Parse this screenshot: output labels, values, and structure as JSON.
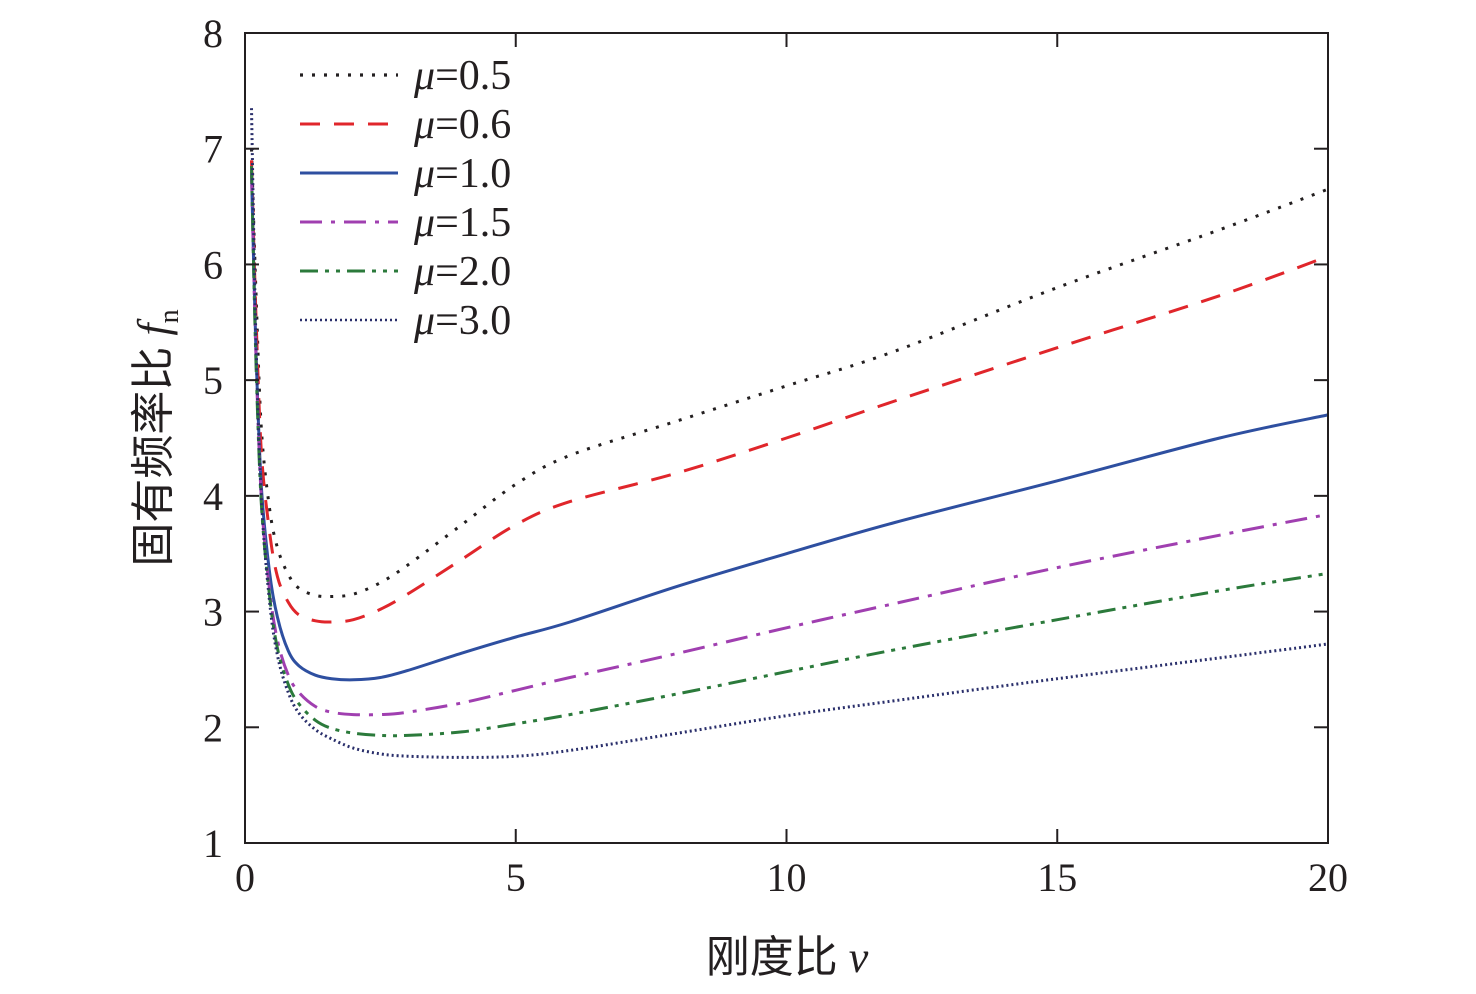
{
  "chart_data": {
    "type": "line",
    "title": "",
    "xlabel": "刚度比 v",
    "ylabel": "固有频率比 f_n",
    "xlabel_parts": {
      "text": "刚度比 ",
      "symbol": "v"
    },
    "ylabel_parts": {
      "text": "固有频率比 ",
      "symbol": "f",
      "subscript": "n"
    },
    "xlim": [
      0,
      20
    ],
    "ylim": [
      1,
      8
    ],
    "xticks": [
      0,
      5,
      10,
      15,
      20
    ],
    "yticks": [
      1,
      2,
      3,
      4,
      5,
      6,
      7,
      8
    ],
    "grid": false,
    "legend_position": "top-left",
    "series": [
      {
        "name": "μ=0.5",
        "mu": "0.5",
        "color": "#231f20",
        "dash": "3 9",
        "width": 3.2,
        "x": [
          0.12,
          0.2,
          0.3,
          0.45,
          0.6,
          0.8,
          1.0,
          1.3,
          1.6,
          2.0,
          2.5,
          3.0,
          4.0,
          5.0,
          6.0,
          8.0,
          10.0,
          12.0,
          15.0,
          18.0,
          20.0
        ],
        "y": [
          7.0,
          5.8,
          4.6,
          3.9,
          3.55,
          3.32,
          3.2,
          3.14,
          3.13,
          3.15,
          3.25,
          3.4,
          3.75,
          4.1,
          4.35,
          4.65,
          4.95,
          5.25,
          5.8,
          6.3,
          6.65
        ]
      },
      {
        "name": "μ=0.6",
        "mu": "0.6",
        "color": "#e0262b",
        "dash": "20 14",
        "width": 3,
        "x": [
          0.12,
          0.2,
          0.3,
          0.45,
          0.6,
          0.8,
          1.0,
          1.3,
          1.6,
          2.0,
          2.5,
          3.0,
          4.0,
          5.0,
          6.0,
          8.0,
          10.0,
          12.0,
          15.0,
          18.0,
          20.0
        ],
        "y": [
          6.9,
          5.6,
          4.4,
          3.7,
          3.3,
          3.08,
          2.97,
          2.92,
          2.91,
          2.93,
          3.02,
          3.15,
          3.45,
          3.75,
          3.95,
          4.2,
          4.5,
          4.82,
          5.28,
          5.73,
          6.07
        ]
      },
      {
        "name": "μ=1.0",
        "mu": "1.0",
        "color": "#2e4fa0",
        "dash": "",
        "width": 3,
        "x": [
          0.12,
          0.2,
          0.3,
          0.45,
          0.6,
          0.8,
          1.0,
          1.3,
          1.6,
          2.0,
          2.5,
          3.0,
          4.0,
          5.0,
          6.0,
          8.0,
          10.0,
          12.0,
          15.0,
          18.0,
          20.0
        ],
        "y": [
          6.8,
          5.3,
          4.1,
          3.35,
          2.95,
          2.66,
          2.53,
          2.45,
          2.42,
          2.41,
          2.43,
          2.49,
          2.64,
          2.78,
          2.91,
          3.22,
          3.5,
          3.77,
          4.13,
          4.5,
          4.7
        ]
      },
      {
        "name": "μ=1.5",
        "mu": "1.5",
        "color": "#a03fb0",
        "dash": "22 9 4 9",
        "width": 3,
        "x": [
          0.12,
          0.2,
          0.3,
          0.45,
          0.6,
          0.8,
          1.0,
          1.3,
          1.6,
          2.0,
          2.5,
          3.0,
          4.0,
          5.0,
          6.0,
          8.0,
          10.0,
          12.0,
          15.0,
          18.0,
          20.0
        ],
        "y": [
          6.8,
          5.25,
          4.0,
          3.2,
          2.75,
          2.45,
          2.3,
          2.18,
          2.13,
          2.11,
          2.11,
          2.13,
          2.21,
          2.32,
          2.43,
          2.64,
          2.86,
          3.07,
          3.38,
          3.66,
          3.84
        ]
      },
      {
        "name": "μ=2.0",
        "mu": "2.0",
        "color": "#2b7a3b",
        "dash": "18 7 4 7 4 7",
        "width": 3,
        "x": [
          0.12,
          0.2,
          0.3,
          0.45,
          0.6,
          0.8,
          1.0,
          1.3,
          1.6,
          2.0,
          2.5,
          3.0,
          4.0,
          5.0,
          6.0,
          8.0,
          10.0,
          12.0,
          15.0,
          18.0,
          20.0
        ],
        "y": [
          6.85,
          5.2,
          3.95,
          3.15,
          2.68,
          2.37,
          2.2,
          2.06,
          1.99,
          1.95,
          1.93,
          1.93,
          1.96,
          2.03,
          2.11,
          2.29,
          2.48,
          2.67,
          2.93,
          3.18,
          3.33
        ]
      },
      {
        "name": "μ=3.0",
        "mu": "3.0",
        "color": "#2a2f6b",
        "dash": "2 3",
        "width": 2.6,
        "x": [
          0.12,
          0.2,
          0.3,
          0.45,
          0.6,
          0.8,
          1.0,
          1.3,
          1.6,
          2.0,
          2.5,
          3.0,
          4.0,
          5.0,
          6.0,
          8.0,
          10.0,
          12.0,
          15.0,
          18.0,
          20.0
        ],
        "y": [
          7.35,
          5.4,
          4.0,
          3.1,
          2.62,
          2.3,
          2.12,
          1.98,
          1.9,
          1.82,
          1.77,
          1.75,
          1.74,
          1.75,
          1.8,
          1.95,
          2.1,
          2.23,
          2.42,
          2.6,
          2.72
        ]
      }
    ]
  }
}
